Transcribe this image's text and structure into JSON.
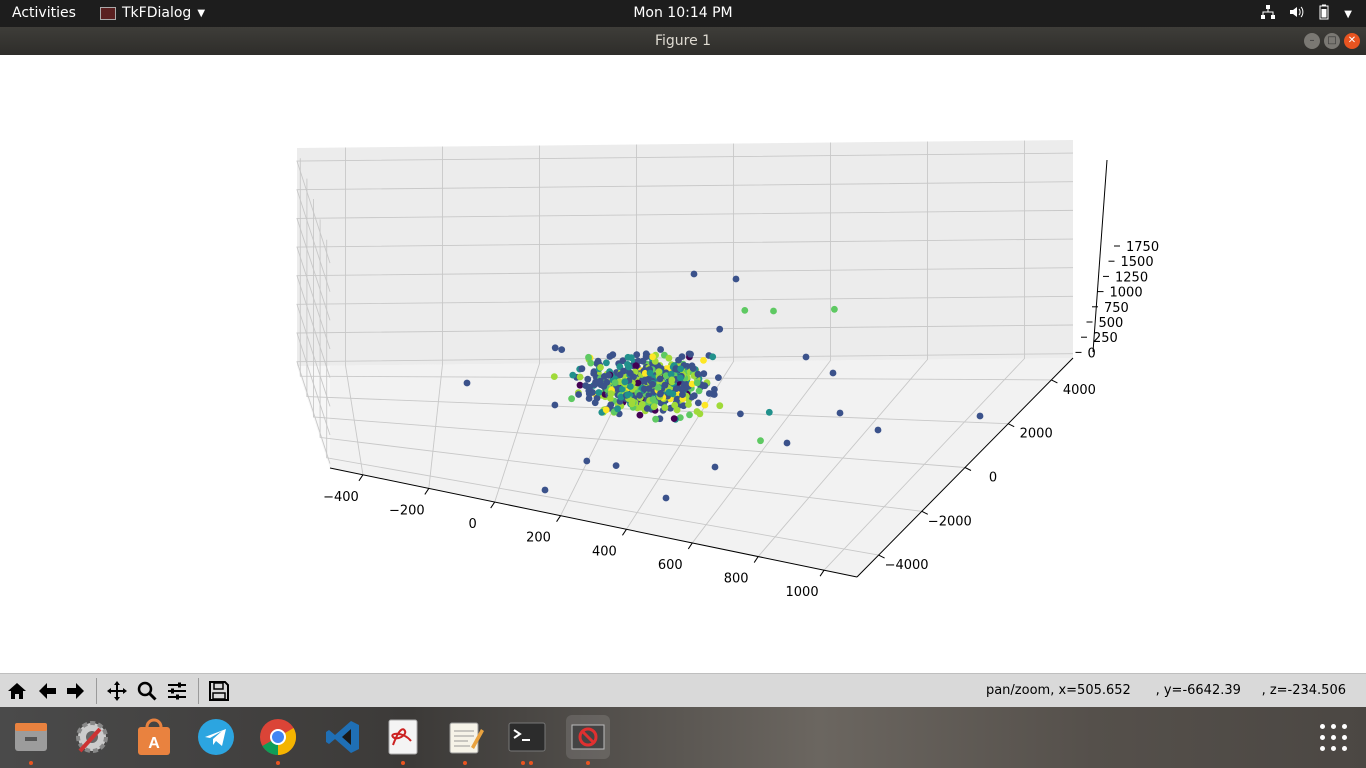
{
  "topbar": {
    "activities": "Activities",
    "app_name": "TkFDialog",
    "clock": "Mon 10:14 PM"
  },
  "window": {
    "title": "Figure 1"
  },
  "toolbar": {
    "buttons": [
      "home-icon",
      "back-icon",
      "forward-icon",
      "pan-icon",
      "zoom-icon",
      "configure-subplots-icon",
      "save-icon"
    ],
    "status": "pan/zoom, x=505.652      , y=-6642.39     , z=-234.506"
  },
  "chart_data": {
    "type": "scatter",
    "projection": "3d",
    "x_ticks": [
      "−400",
      "−200",
      "0",
      "200",
      "400",
      "600",
      "800",
      "1000"
    ],
    "y_ticks": [
      "4000",
      "2000",
      "0",
      "−2000",
      "−4000"
    ],
    "z_ticks": [
      "1750",
      "1500",
      "1250",
      "1000",
      "750",
      "500",
      "250",
      "0"
    ],
    "xlim": [
      -500,
      1000
    ],
    "ylim": [
      -5000,
      5000
    ],
    "zlim": [
      0,
      1750
    ],
    "grid": true,
    "colormap": "viridis",
    "colors": [
      "#440154",
      "#3b528b",
      "#21918c",
      "#5ec962",
      "#a0da39",
      "#fde725"
    ]
  },
  "dock": {
    "items": [
      "files-icon",
      "system-tools-icon",
      "software-store-icon",
      "telegram-icon",
      "chrome-icon",
      "vscode-icon",
      "document-viewer-icon",
      "text-editor-icon",
      "terminal-icon",
      "tk-app-icon"
    ]
  }
}
